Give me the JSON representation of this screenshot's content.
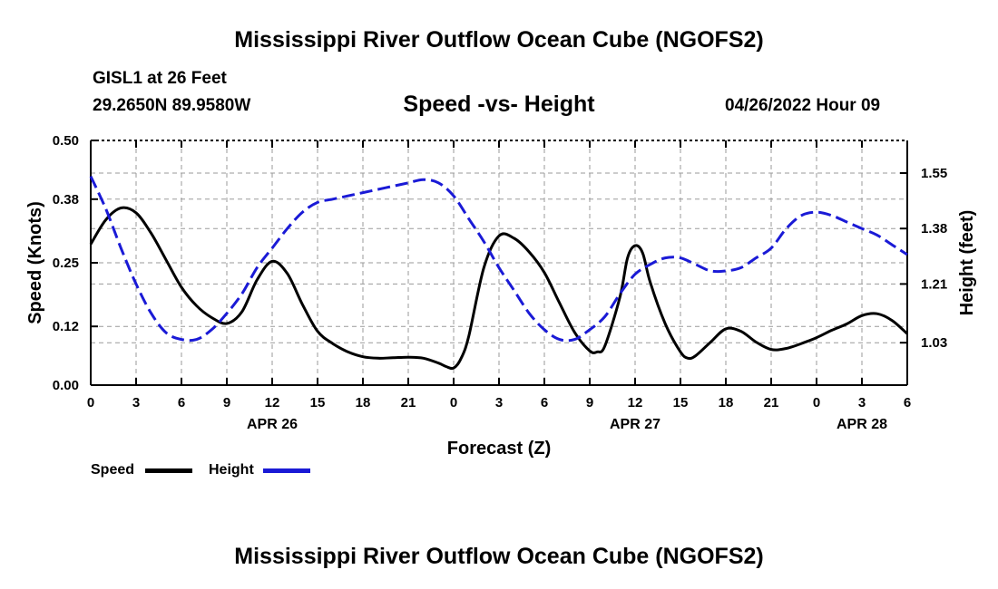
{
  "header": {
    "title": "Mississippi River Outflow Ocean Cube (NGOFS2)",
    "station": "GISL1 at 26 Feet",
    "coords": "29.2650N  89.9580W",
    "subtitle": "Speed -vs- Height",
    "timestamp": "04/26/2022 Hour 09"
  },
  "footer": {
    "title": "Mississippi River Outflow Ocean Cube (NGOFS2)"
  },
  "legend": {
    "speed_label": "Speed",
    "height_label": "Height"
  },
  "colors": {
    "speed": "#000000",
    "height": "#1a1ad6",
    "grid": "#9a9a9a"
  },
  "chart_data": {
    "type": "line",
    "xlabel": "Forecast (Z)",
    "ylabel_left": "Speed (Knots)",
    "ylabel_right": "Height (feet)",
    "x_range_hours": [
      0,
      54
    ],
    "x_ticks": [
      {
        "h": 0,
        "label": "0"
      },
      {
        "h": 3,
        "label": "3"
      },
      {
        "h": 6,
        "label": "6"
      },
      {
        "h": 9,
        "label": "9"
      },
      {
        "h": 12,
        "label": "12"
      },
      {
        "h": 15,
        "label": "15"
      },
      {
        "h": 18,
        "label": "18"
      },
      {
        "h": 21,
        "label": "21"
      },
      {
        "h": 24,
        "label": "0"
      },
      {
        "h": 27,
        "label": "3"
      },
      {
        "h": 30,
        "label": "6"
      },
      {
        "h": 33,
        "label": "9"
      },
      {
        "h": 36,
        "label": "12"
      },
      {
        "h": 39,
        "label": "15"
      },
      {
        "h": 42,
        "label": "18"
      },
      {
        "h": 45,
        "label": "21"
      },
      {
        "h": 48,
        "label": "0"
      },
      {
        "h": 51,
        "label": "3"
      },
      {
        "h": 54,
        "label": "6"
      }
    ],
    "date_labels": [
      {
        "h": 12,
        "label": "APR 26"
      },
      {
        "h": 36,
        "label": "APR 27"
      },
      {
        "h": 51,
        "label": "APR 28"
      }
    ],
    "y_left": {
      "min": 0,
      "max": 0.5,
      "ticks": [
        "0.00",
        "0.12",
        "0.25",
        "0.38",
        "0.50"
      ]
    },
    "y_right": {
      "min": 0.9,
      "max": 1.65,
      "ticks": [
        "1.03",
        "1.21",
        "1.38",
        "1.55"
      ]
    },
    "series": [
      {
        "name": "Speed",
        "axis": "left",
        "x": [
          0,
          1,
          2,
          3,
          4,
          5,
          6,
          7,
          8,
          9,
          10,
          11,
          12,
          13,
          14,
          15,
          16,
          17,
          18,
          19,
          20,
          21,
          22,
          23,
          23.5,
          24,
          24.5,
          25,
          26,
          27,
          28,
          29,
          30,
          31,
          32,
          33,
          33.5,
          34,
          35,
          35.5,
          36,
          36.5,
          37,
          38,
          39,
          39.5,
          40,
          41,
          42,
          43,
          44,
          45,
          46,
          47,
          48,
          49,
          50,
          51,
          52,
          53,
          54
        ],
        "values": [
          0.288,
          0.338,
          0.362,
          0.352,
          0.31,
          0.255,
          0.2,
          0.162,
          0.138,
          0.126,
          0.15,
          0.215,
          0.253,
          0.228,
          0.165,
          0.11,
          0.085,
          0.068,
          0.058,
          0.055,
          0.056,
          0.057,
          0.055,
          0.045,
          0.038,
          0.035,
          0.055,
          0.1,
          0.24,
          0.305,
          0.3,
          0.272,
          0.23,
          0.168,
          0.108,
          0.07,
          0.068,
          0.08,
          0.18,
          0.26,
          0.285,
          0.27,
          0.21,
          0.125,
          0.068,
          0.055,
          0.06,
          0.088,
          0.115,
          0.11,
          0.088,
          0.073,
          0.075,
          0.085,
          0.097,
          0.112,
          0.125,
          0.142,
          0.146,
          0.132,
          0.105
        ]
      },
      {
        "name": "Height",
        "axis": "right",
        "x": [
          0,
          1,
          2,
          3,
          4,
          5,
          6,
          7,
          8,
          9,
          10,
          11,
          12,
          13,
          14,
          15,
          16,
          17,
          18,
          19,
          20,
          21,
          22,
          23,
          24,
          25,
          26,
          27,
          28,
          29,
          30,
          31,
          32,
          33,
          34,
          35,
          36,
          37,
          38,
          39,
          40,
          41,
          42,
          43,
          44,
          45,
          46,
          47,
          48,
          49,
          50,
          51,
          52,
          53,
          54
        ],
        "values": [
          1.54,
          1.44,
          1.32,
          1.21,
          1.12,
          1.06,
          1.04,
          1.04,
          1.07,
          1.12,
          1.18,
          1.26,
          1.32,
          1.38,
          1.43,
          1.46,
          1.47,
          1.48,
          1.49,
          1.5,
          1.51,
          1.52,
          1.53,
          1.52,
          1.48,
          1.41,
          1.34,
          1.26,
          1.19,
          1.12,
          1.07,
          1.04,
          1.04,
          1.07,
          1.11,
          1.18,
          1.24,
          1.27,
          1.29,
          1.29,
          1.27,
          1.25,
          1.25,
          1.26,
          1.29,
          1.32,
          1.38,
          1.42,
          1.43,
          1.42,
          1.4,
          1.38,
          1.36,
          1.33,
          1.3
        ]
      }
    ]
  }
}
